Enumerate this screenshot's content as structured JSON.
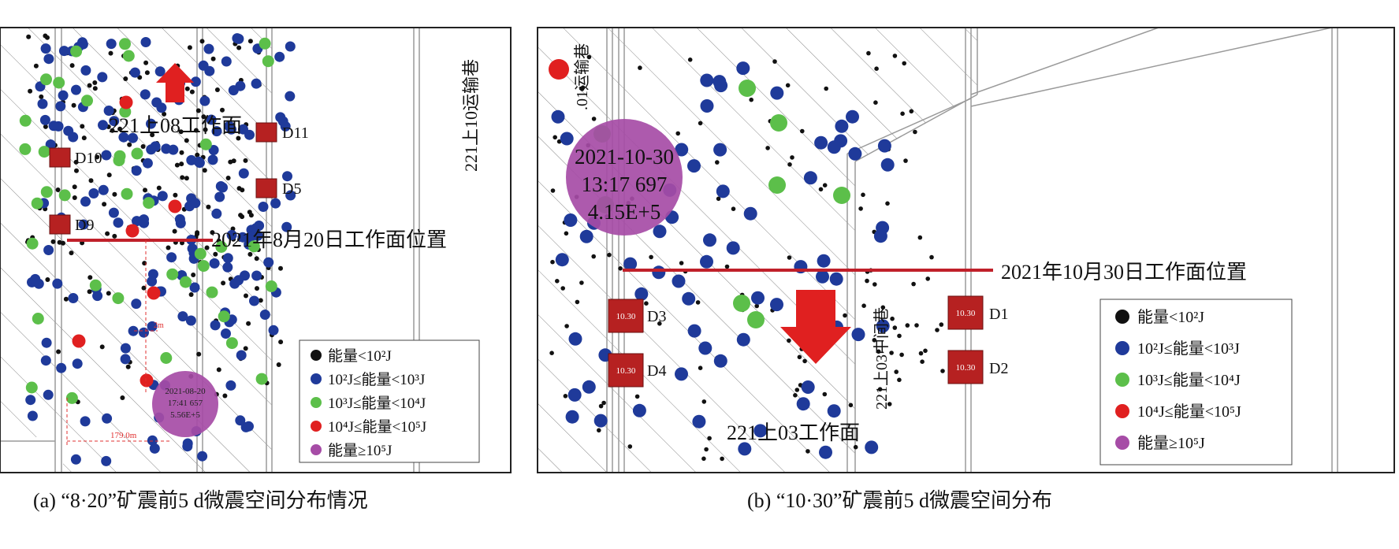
{
  "panel_a": {
    "caption": "(a) “8·20”矿震前5 d微震空间分布情况",
    "face_label": "221上08工作面",
    "roadway_label": "221上10运输巷",
    "face_position_label": "2021年8月20日工作面位置",
    "stations": [
      "D10",
      "D9",
      "D11",
      "D5"
    ],
    "big_event": {
      "date": "2021-08-20",
      "time": "17:41 657",
      "energy": "5.56E+5"
    },
    "dim_small": "2m",
    "dim_large": "179.0m",
    "legend": [
      "能量<10²J",
      "10²J≤能量<10³J",
      "10³J≤能量<10⁴J",
      "10⁴J≤能量<10⁵J",
      "能量≥10⁵J"
    ]
  },
  "panel_b": {
    "caption": "(b) “10·30”矿震前5 d微震空间分布",
    "face_label": "221上03工作面",
    "roadway_label_left": ".01运输巷",
    "roadway_label_mid": "221上03中间巷",
    "face_position_label": "2021年10月30日工作面位置",
    "stations": [
      {
        "name": "D3",
        "tag": "10.30"
      },
      {
        "name": "D4",
        "tag": "10.30"
      },
      {
        "name": "D1",
        "tag": "10.30"
      },
      {
        "name": "D2",
        "tag": "10.30"
      }
    ],
    "big_event": {
      "date": "2021-10-30",
      "time": "13:17 697",
      "energy": "4.15E+5"
    },
    "legend": [
      "能量<10²J",
      "10²J≤能量<10³J",
      "10³J≤能量<10⁴J",
      "10⁴J≤能量<10⁵J",
      "能量≥10⁵J"
    ]
  },
  "colors": {
    "black": "#111111",
    "blue": "#1f3a9a",
    "green": "#5cbf4a",
    "red": "#e02020",
    "purple": "#a64ca6",
    "station": "#b62121",
    "face_line": "#c0202a"
  }
}
